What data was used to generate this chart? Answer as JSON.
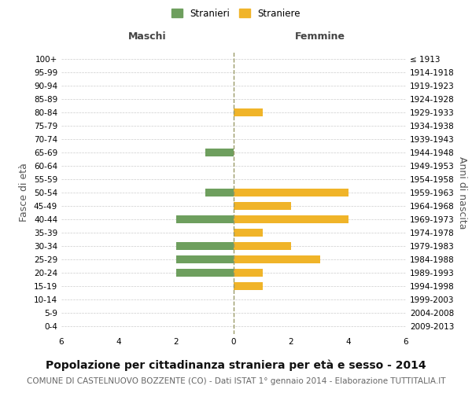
{
  "age_groups": [
    "0-4",
    "5-9",
    "10-14",
    "15-19",
    "20-24",
    "25-29",
    "30-34",
    "35-39",
    "40-44",
    "45-49",
    "50-54",
    "55-59",
    "60-64",
    "65-69",
    "70-74",
    "75-79",
    "80-84",
    "85-89",
    "90-94",
    "95-99",
    "100+"
  ],
  "birth_years": [
    "2009-2013",
    "2004-2008",
    "1999-2003",
    "1994-1998",
    "1989-1993",
    "1984-1988",
    "1979-1983",
    "1974-1978",
    "1969-1973",
    "1964-1968",
    "1959-1963",
    "1954-1958",
    "1949-1953",
    "1944-1948",
    "1939-1943",
    "1934-1938",
    "1929-1933",
    "1924-1928",
    "1919-1923",
    "1914-1918",
    "≤ 1913"
  ],
  "maschi": [
    0,
    0,
    0,
    0,
    2,
    2,
    2,
    0,
    2,
    0,
    1,
    0,
    0,
    1,
    0,
    0,
    0,
    0,
    0,
    0,
    0
  ],
  "femmine": [
    0,
    0,
    0,
    1,
    1,
    3,
    2,
    1,
    4,
    2,
    4,
    0,
    0,
    0,
    0,
    0,
    1,
    0,
    0,
    0,
    0
  ],
  "maschi_color": "#6e9f5e",
  "femmine_color": "#f0b429",
  "xlim": 6,
  "title": "Popolazione per cittadinanza straniera per età e sesso - 2014",
  "subtitle": "COMUNE DI CASTELNUOVO BOZZENTE (CO) - Dati ISTAT 1° gennaio 2014 - Elaborazione TUTTITALIA.IT",
  "ylabel_left": "Fasce di età",
  "ylabel_right": "Anni di nascita",
  "xlabel_maschi": "Maschi",
  "xlabel_femmine": "Femmine",
  "legend_maschi": "Stranieri",
  "legend_femmine": "Straniere",
  "background_color": "#ffffff",
  "grid_color": "#cccccc",
  "center_line_color": "#999966",
  "title_fontsize": 10,
  "subtitle_fontsize": 7.5,
  "tick_fontsize": 7.5,
  "label_fontsize": 9,
  "header_fontsize": 9
}
